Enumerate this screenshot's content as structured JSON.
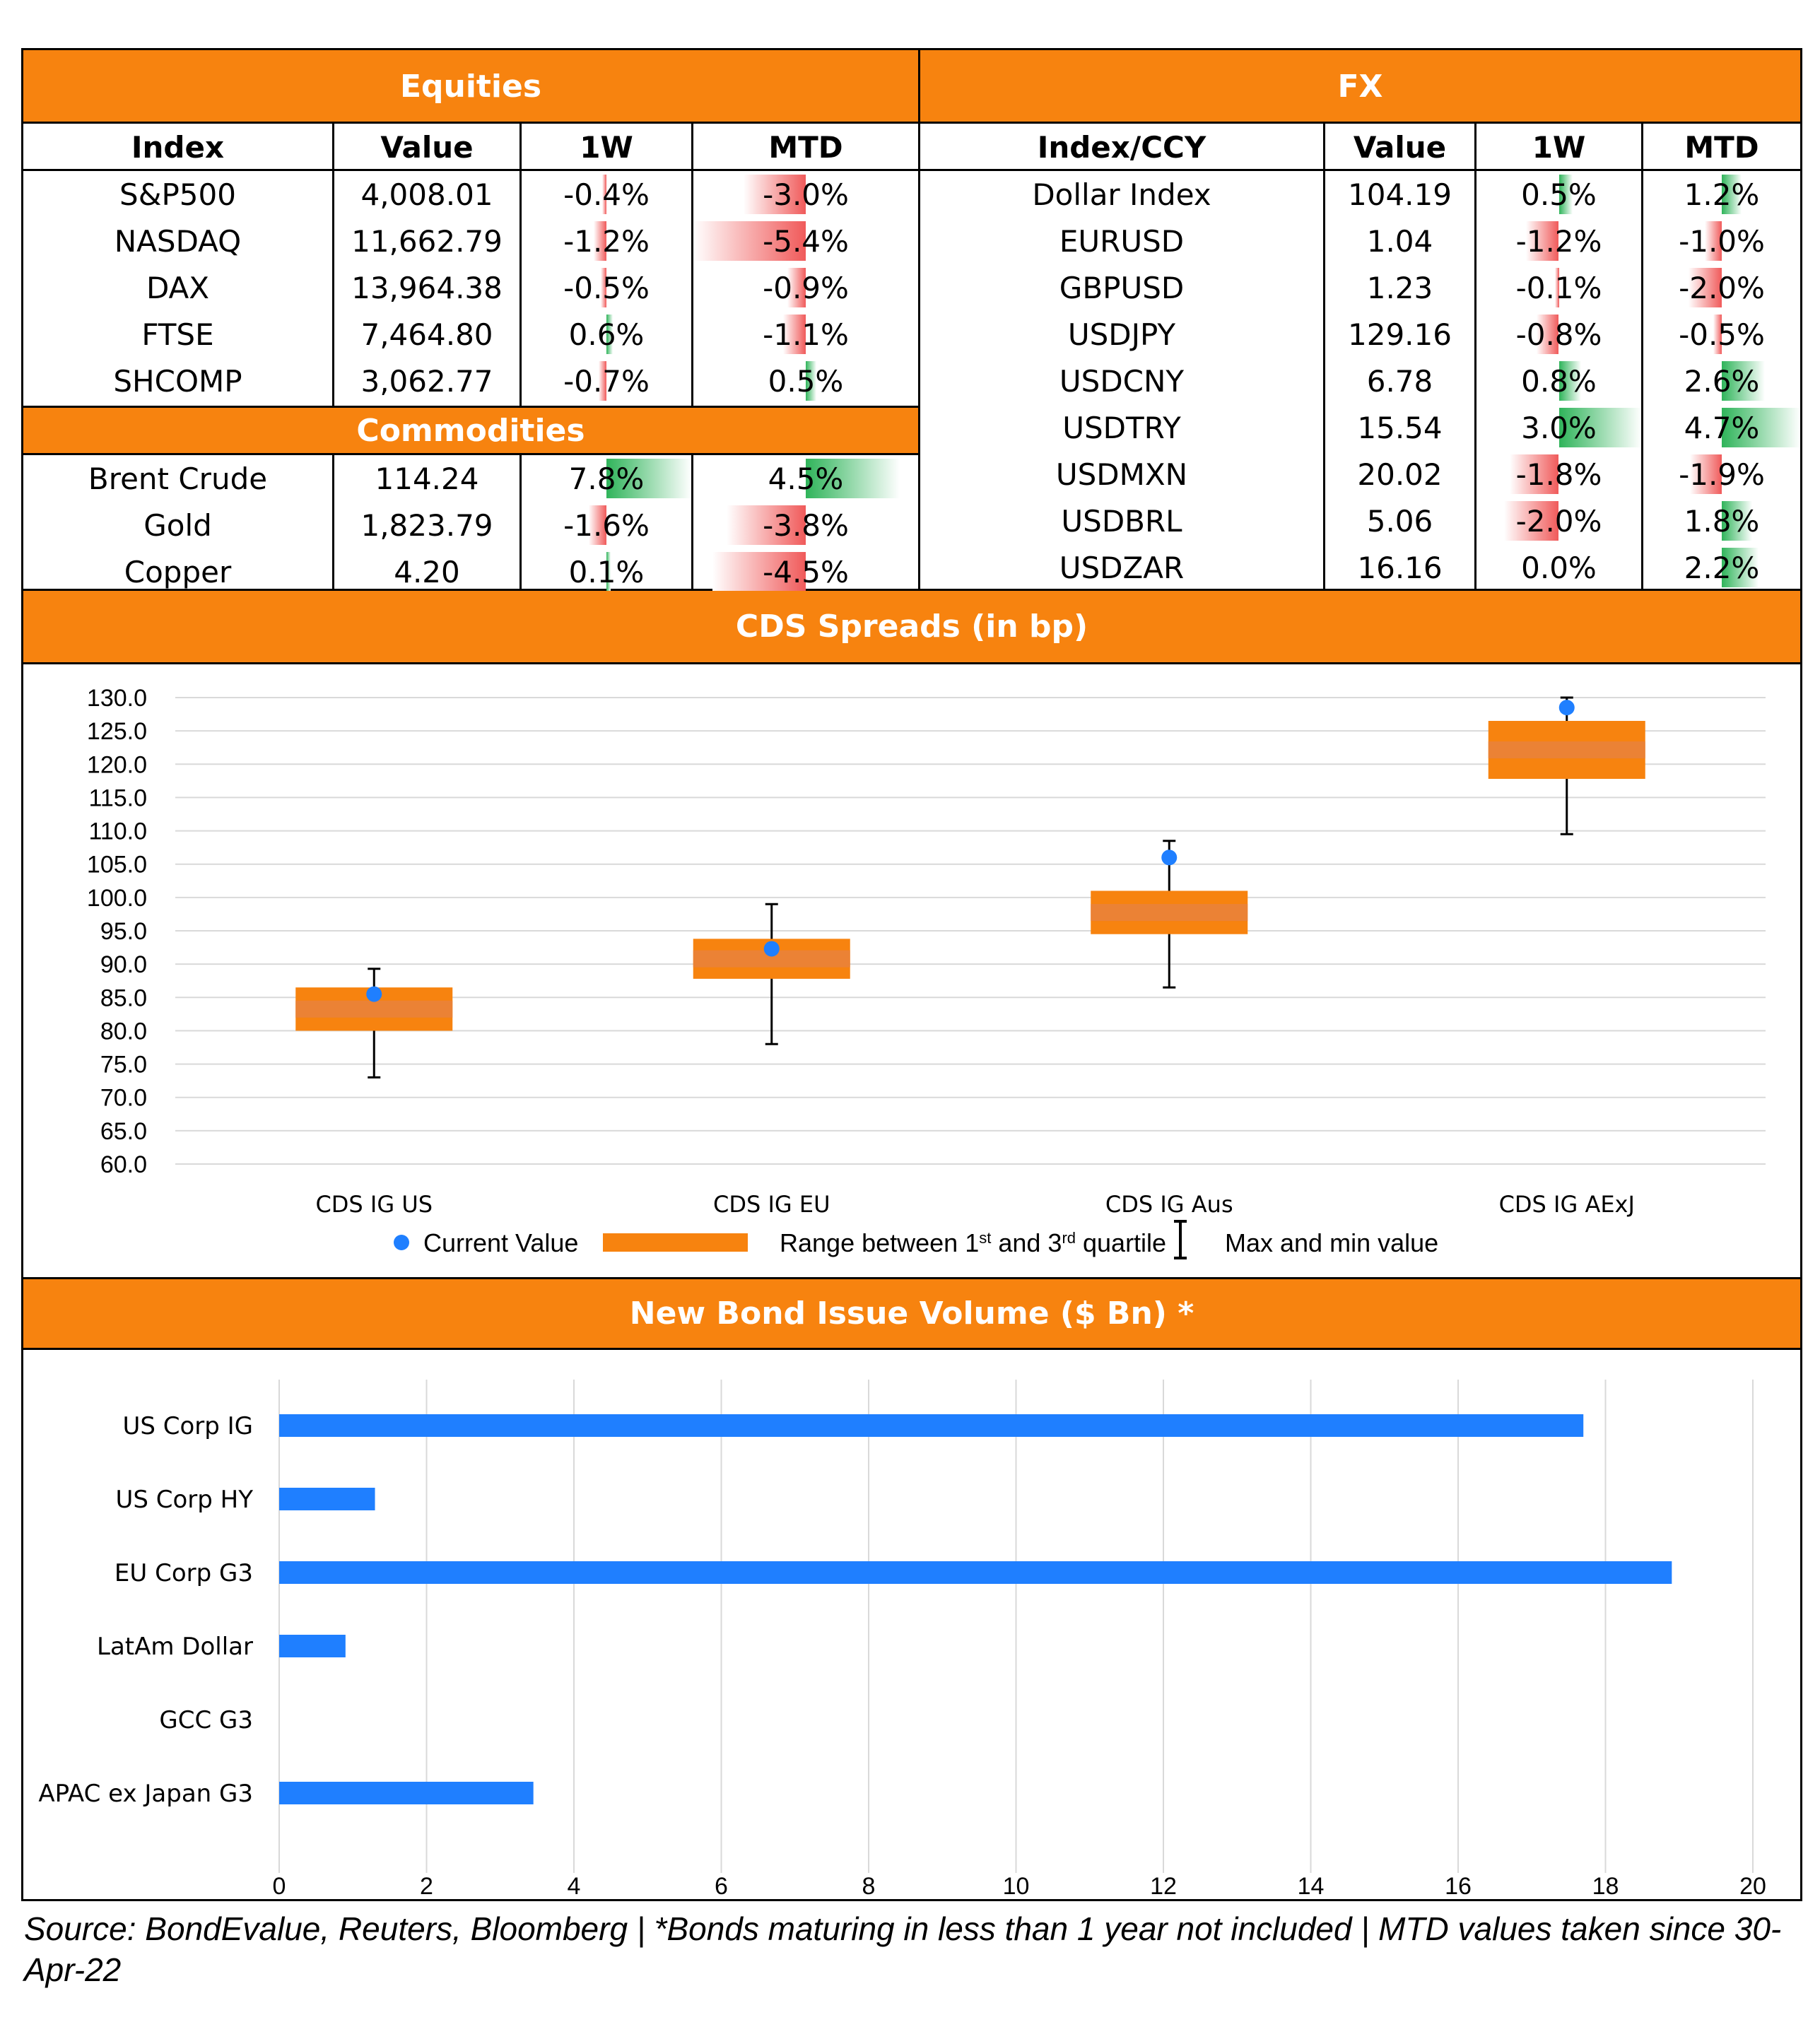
{
  "equities": {
    "title": "Equities",
    "headers": [
      "Index",
      "Value",
      "1W",
      "MTD"
    ],
    "rows": [
      {
        "name": "S&P500",
        "value": "4,008.01",
        "w1": "-0.4%",
        "mtd": "-3.0%",
        "w1_num": -0.4,
        "mtd_num": -3.0
      },
      {
        "name": "NASDAQ",
        "value": "11,662.79",
        "w1": "-1.2%",
        "mtd": "-5.4%",
        "w1_num": -1.2,
        "mtd_num": -5.4
      },
      {
        "name": "DAX",
        "value": "13,964.38",
        "w1": "-0.5%",
        "mtd": "-0.9%",
        "w1_num": -0.5,
        "mtd_num": -0.9
      },
      {
        "name": "FTSE",
        "value": "7,464.80",
        "w1": "0.6%",
        "mtd": "-1.1%",
        "w1_num": 0.6,
        "mtd_num": -1.1
      },
      {
        "name": "SHCOMP",
        "value": "3,062.77",
        "w1": "-0.7%",
        "mtd": "0.5%",
        "w1_num": -0.7,
        "mtd_num": 0.5
      }
    ]
  },
  "commodities": {
    "title": "Commodities",
    "rows": [
      {
        "name": "Brent Crude",
        "value": "114.24",
        "w1": "7.8%",
        "mtd": "4.5%",
        "w1_num": 7.8,
        "mtd_num": 4.5
      },
      {
        "name": "Gold",
        "value": "1,823.79",
        "w1": "-1.6%",
        "mtd": "-3.8%",
        "w1_num": -1.6,
        "mtd_num": -3.8
      },
      {
        "name": "Copper",
        "value": "4.20",
        "w1": "0.1%",
        "mtd": "-4.5%",
        "w1_num": 0.1,
        "mtd_num": -4.5
      }
    ]
  },
  "fx": {
    "title": "FX",
    "headers": [
      "Index/CCY",
      "Value",
      "1W",
      "MTD"
    ],
    "rows": [
      {
        "name": "Dollar Index",
        "value": "104.19",
        "w1": "0.5%",
        "mtd": "1.2%",
        "w1_num": 0.5,
        "mtd_num": 1.2
      },
      {
        "name": "EURUSD",
        "value": "1.04",
        "w1": "-1.2%",
        "mtd": "-1.0%",
        "w1_num": -1.2,
        "mtd_num": -1.0
      },
      {
        "name": "GBPUSD",
        "value": "1.23",
        "w1": "-0.1%",
        "mtd": "-2.0%",
        "w1_num": -0.1,
        "mtd_num": -2.0
      },
      {
        "name": "USDJPY",
        "value": "129.16",
        "w1": "-0.8%",
        "mtd": "-0.5%",
        "w1_num": -0.8,
        "mtd_num": -0.5
      },
      {
        "name": "USDCNY",
        "value": "6.78",
        "w1": "0.8%",
        "mtd": "2.6%",
        "w1_num": 0.8,
        "mtd_num": 2.6
      },
      {
        "name": "USDTRY",
        "value": "15.54",
        "w1": "3.0%",
        "mtd": "4.7%",
        "w1_num": 3.0,
        "mtd_num": 4.7
      },
      {
        "name": "USDMXN",
        "value": "20.02",
        "w1": "-1.8%",
        "mtd": "-1.9%",
        "w1_num": -1.8,
        "mtd_num": -1.9
      },
      {
        "name": "USDBRL",
        "value": "5.06",
        "w1": "-2.0%",
        "mtd": "1.8%",
        "w1_num": -2.0,
        "mtd_num": 1.8
      },
      {
        "name": "USDZAR",
        "value": "16.16",
        "w1": "0.0%",
        "mtd": "2.2%",
        "w1_num": 0.0,
        "mtd_num": 2.2
      }
    ]
  },
  "colors": {
    "orange": "#f7830f",
    "blue": "#1f7fff",
    "box": "#f7830f",
    "pos": "#2fb45a",
    "neg": "#f05a5a"
  },
  "chart_data": [
    {
      "type": "box",
      "title": "CDS Spreads (in bp)",
      "categories": [
        "CDS IG US",
        "CDS IG EU",
        "CDS IG Aus",
        "CDS IG AExJ"
      ],
      "current": [
        85.5,
        92.3,
        106.0,
        128.5
      ],
      "q1": [
        80.0,
        87.8,
        94.5,
        117.8
      ],
      "q3": [
        86.5,
        93.8,
        101.0,
        126.5
      ],
      "min": [
        73.0,
        78.0,
        86.5,
        109.5
      ],
      "max": [
        89.3,
        99.0,
        108.5,
        130.0
      ],
      "ylim": [
        60.0,
        130.0
      ],
      "yticks": [
        "130.0",
        "125.0",
        "120.0",
        "115.0",
        "110.0",
        "105.0",
        "100.0",
        "95.0",
        "90.0",
        "85.0",
        "80.0",
        "75.0",
        "70.0",
        "65.0",
        "60.0"
      ],
      "legend": {
        "current": "Current Value",
        "range_pre": "Range between 1",
        "range_sup1": "st",
        "range_mid": " and 3",
        "range_sup2": "rd",
        "range_post": " quartile",
        "maxmin": "Max and min value"
      }
    },
    {
      "type": "bar",
      "orientation": "horizontal",
      "title": "New Bond Issue Volume ($ Bn) *",
      "categories": [
        "US Corp IG",
        "US Corp HY",
        "EU Corp G3",
        "LatAm Dollar",
        "GCC G3",
        "APAC ex Japan G3"
      ],
      "values": [
        17.7,
        1.3,
        18.9,
        0.9,
        0.0,
        3.45
      ],
      "xlim": [
        0,
        20
      ],
      "xticks": [
        "0",
        "2",
        "4",
        "6",
        "8",
        "10",
        "12",
        "14",
        "16",
        "18",
        "20"
      ]
    }
  ],
  "footer": "Source: BondEvalue, Reuters, Bloomberg | *Bonds maturing in less than 1 year not included | MTD values taken since 30-Apr-22"
}
